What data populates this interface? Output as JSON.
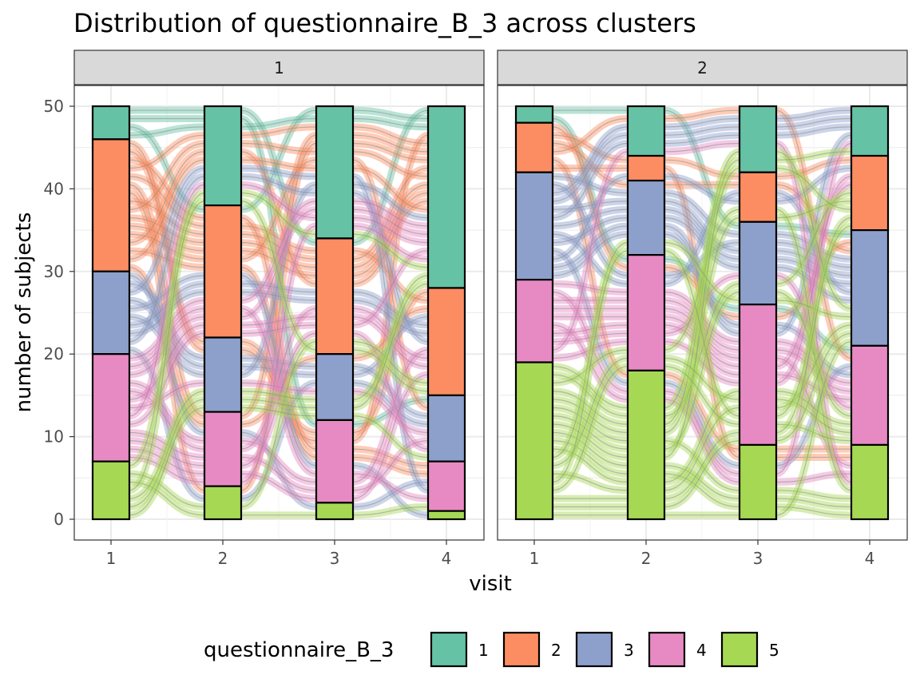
{
  "chart_data": {
    "type": "alluvial",
    "title": "Distribution of questionnaire_B_3 across clusters",
    "xlabel": "visit",
    "ylabel": "number of subjects",
    "ylim": [
      0,
      52
    ],
    "y_ticks": [
      0,
      10,
      20,
      30,
      40,
      50
    ],
    "x_categories": [
      "1",
      "2",
      "3",
      "4"
    ],
    "legend": {
      "title": "questionnaire_B_3",
      "position": "bottom",
      "levels": [
        "1",
        "2",
        "3",
        "4",
        "5"
      ]
    },
    "colors": {
      "1": "#66c2a5",
      "2": "#fc8d62",
      "3": "#8da0cb",
      "4": "#e78ac3",
      "5": "#a6d854"
    },
    "grid": true,
    "panels": [
      {
        "strip": "1",
        "counts": {
          "1": {
            "1": 4,
            "2": 16,
            "3": 10,
            "4": 13,
            "5": 7
          },
          "2": {
            "1": 12,
            "2": 16,
            "3": 9,
            "4": 9,
            "5": 4
          },
          "3": {
            "1": 16,
            "2": 14,
            "3": 8,
            "4": 10,
            "5": 2
          },
          "4": {
            "1": 22,
            "2": 13,
            "3": 8,
            "4": 6,
            "5": 1
          }
        }
      },
      {
        "strip": "2",
        "counts": {
          "1": {
            "1": 2,
            "2": 6,
            "3": 13,
            "4": 10,
            "5": 19
          },
          "2": {
            "1": 6,
            "2": 3,
            "3": 9,
            "4": 14,
            "5": 18
          },
          "3": {
            "1": 8,
            "2": 6,
            "3": 10,
            "4": 17,
            "5": 9
          },
          "4": {
            "1": 6,
            "2": 9,
            "3": 14,
            "4": 12,
            "5": 9
          }
        }
      }
    ]
  }
}
